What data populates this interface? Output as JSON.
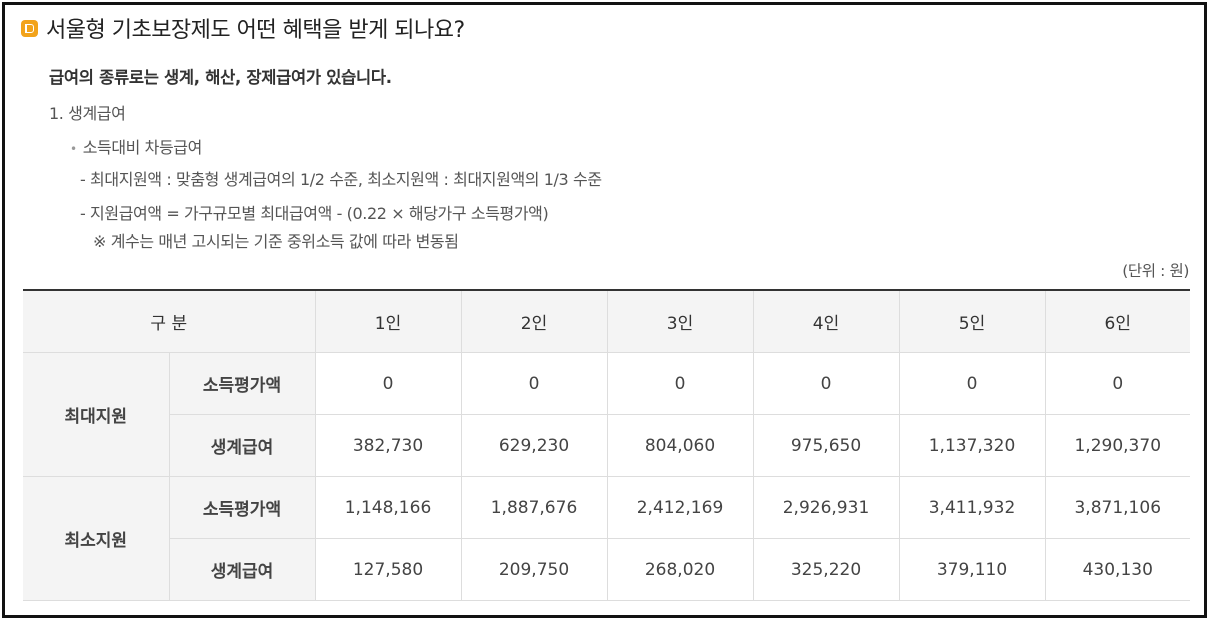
{
  "title": "서울형 기초보장제도 어떤 혜택을 받게 되나요?",
  "subtitle": "급여의 종류로는 생계, 해산, 장제급여가 있습니다.",
  "section_title": "1. 생계급여",
  "bullet": "소득대비 차등급여",
  "line1": "- 최대지원액 : 맞춤형 생계급여의 1/2 수준, 최소지원액 : 최대지원액의 1/3 수준",
  "line2": "- 지원급여액 = 가구규모별 최대급여액 - (0.22 × 해당가구 소득평가액)",
  "note": "※ 계수는 매년 고시되는 기준 중위소득 값에 따라 변동됨",
  "unit": "(단위 : 원)",
  "table": {
    "header_label": "구 분",
    "columns": [
      "1인",
      "2인",
      "3인",
      "4인",
      "5인",
      "6인"
    ],
    "groups": [
      {
        "name": "최대지원",
        "rows": [
          {
            "label": "소득평가액",
            "values": [
              "0",
              "0",
              "0",
              "0",
              "0",
              "0"
            ]
          },
          {
            "label": "생계급여",
            "values": [
              "382,730",
              "629,230",
              "804,060",
              "975,650",
              "1,137,320",
              "1,290,370"
            ]
          }
        ]
      },
      {
        "name": "최소지원",
        "rows": [
          {
            "label": "소득평가액",
            "values": [
              "1,148,166",
              "1,887,676",
              "2,412,169",
              "2,926,931",
              "3,411,932",
              "3,871,106"
            ]
          },
          {
            "label": "생계급여",
            "values": [
              "127,580",
              "209,750",
              "268,020",
              "325,220",
              "379,110",
              "430,130"
            ]
          }
        ]
      }
    ]
  }
}
